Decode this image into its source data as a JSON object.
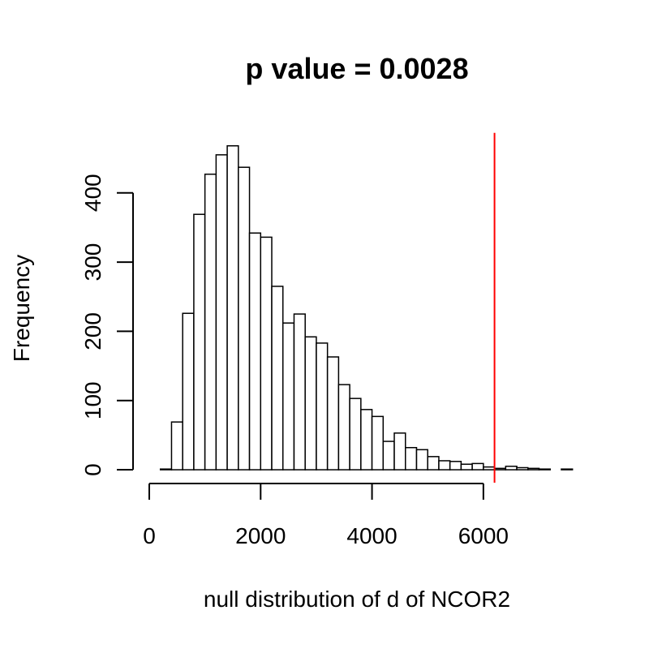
{
  "chart_data": {
    "type": "histogram",
    "title": "p value = 0.0028",
    "x_label": "null distribution of d of NCOR2",
    "y_label": "Frequency",
    "bins": [
      200,
      400,
      600,
      800,
      1000,
      1200,
      1400,
      1600,
      1800,
      2000,
      2200,
      2400,
      2600,
      2800,
      3000,
      3200,
      3400,
      3600,
      3800,
      4000,
      4200,
      4400,
      4600,
      4800,
      5000,
      5200,
      5400,
      5600,
      5800,
      6000,
      6200,
      6400,
      6600,
      6800,
      7000,
      7200,
      7400,
      7600
    ],
    "values": [
      1,
      69,
      226,
      369,
      427,
      455,
      468,
      437,
      342,
      336,
      265,
      212,
      225,
      192,
      183,
      163,
      123,
      103,
      87,
      77,
      41,
      53,
      32,
      29,
      19,
      13,
      12,
      8,
      9,
      4,
      2,
      5,
      3,
      2,
      1,
      0,
      1
    ],
    "color": "#ffffff",
    "reference_line": {
      "x": 6200,
      "color": "#ff0000"
    },
    "xlim": [
      -96,
      7896
    ],
    "xticks": [
      0,
      2000,
      4000,
      6000
    ],
    "ylim": [
      -18.7,
      486.7
    ],
    "yticks": [
      0,
      100,
      200,
      300,
      400
    ]
  }
}
